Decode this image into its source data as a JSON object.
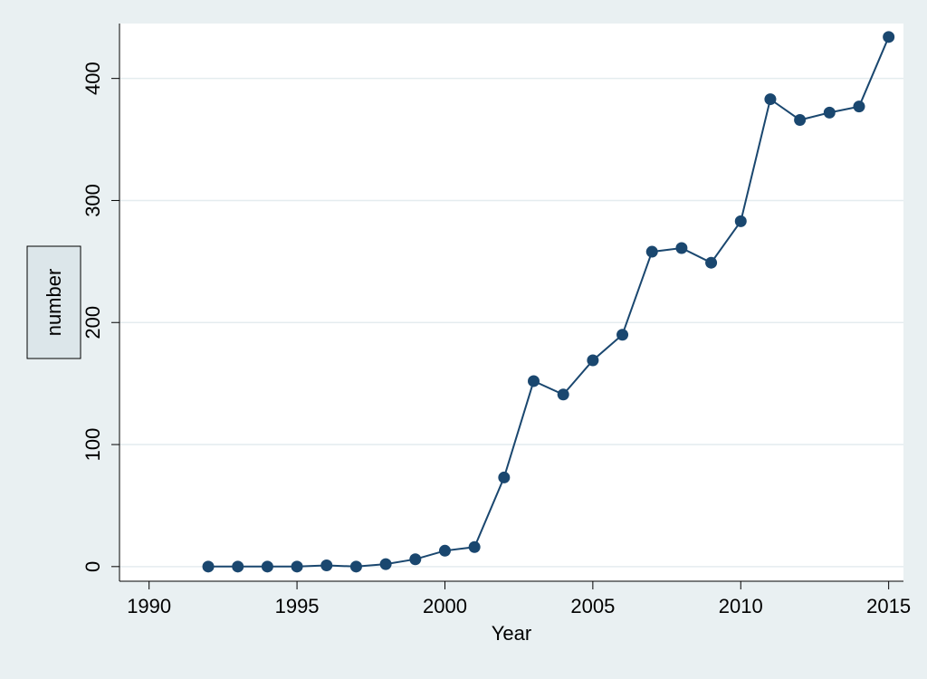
{
  "chart_data": {
    "type": "line",
    "xlabel": "Year",
    "ylabel": "number",
    "xlim": [
      1989,
      2015.5
    ],
    "ylim": [
      -12,
      445
    ],
    "xticks": [
      1990,
      1995,
      2000,
      2005,
      2010,
      2015
    ],
    "yticks": [
      0,
      100,
      200,
      300,
      400
    ],
    "grid": true,
    "legend": "none",
    "colors": {
      "series": "#1a476f",
      "plot_background": "#ffffff",
      "outer_background": "#e9f0f2",
      "gridline": "#e4ecef",
      "ylabel_box": "#dce6ea"
    },
    "series": [
      {
        "x": [
          1992,
          1993,
          1994,
          1995,
          1996,
          1997,
          1998,
          1999,
          2000,
          2001,
          2002,
          2003,
          2004,
          2005,
          2006,
          2007,
          2008,
          2009,
          2010,
          2011,
          2012,
          2013,
          2014,
          2015
        ],
        "values": [
          0,
          0,
          0,
          0,
          1,
          0,
          2,
          6,
          13,
          16,
          73,
          152,
          141,
          169,
          190,
          258,
          261,
          249,
          283,
          383,
          366,
          372,
          377,
          434
        ]
      }
    ]
  }
}
